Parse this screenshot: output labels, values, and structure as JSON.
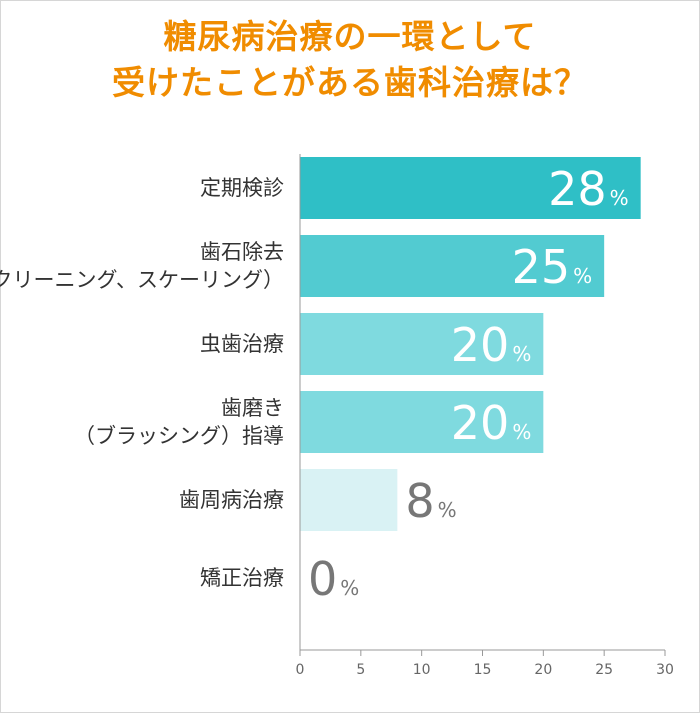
{
  "title_lines": [
    "糖尿病治療の一環として",
    "受けたことがある歯科治療は？"
  ],
  "chart_data": {
    "type": "bar",
    "orientation": "horizontal",
    "title": "糖尿病治療の一環として受けたことがある歯科治療は？",
    "categories": [
      [
        "定期検診"
      ],
      [
        "歯石除去",
        "（クリーニング、スケーリング）"
      ],
      [
        "虫歯治療"
      ],
      [
        "歯磨き",
        "（ブラッシング）指導"
      ],
      [
        "歯周病治療"
      ],
      [
        "矯正治療"
      ]
    ],
    "values": [
      28,
      25,
      20,
      20,
      8,
      0
    ],
    "unit": "%",
    "xlim": [
      0,
      30
    ],
    "xticks": [
      "0",
      "5",
      "10",
      "15",
      "20",
      "25",
      "30"
    ],
    "bar_colors": [
      "#2fbfc6",
      "#52cbd1",
      "#7fdadf",
      "#7fdadf",
      "#d9f2f4",
      "#d9f2f4"
    ],
    "label_inside_color": "#ffffff",
    "label_outside_color": "#777777",
    "axis_color": "#999999",
    "grid": false
  }
}
